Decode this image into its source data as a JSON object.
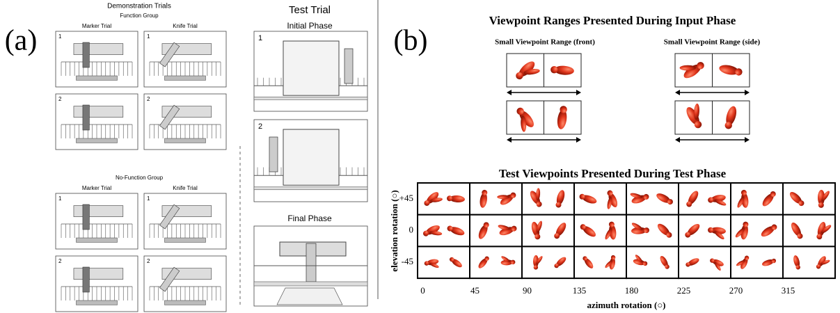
{
  "panel_a": {
    "label": "(a)",
    "demonstration": {
      "title": "Demonstration Trials",
      "groups": [
        {
          "name": "Function Group",
          "columns": [
            "Marker Trial",
            "Knife Trial"
          ],
          "steps": [
            "1",
            "2"
          ]
        },
        {
          "name": "No-Function Group",
          "columns": [
            "Marker Trial",
            "Knife Trial"
          ],
          "steps": [
            "1",
            "2"
          ]
        }
      ]
    },
    "test": {
      "title": "Test Trial",
      "initial": {
        "title": "Initial Phase",
        "steps": [
          "1",
          "2"
        ]
      },
      "final": {
        "title": "Final Phase"
      }
    }
  },
  "panel_b": {
    "label": "(b)",
    "input": {
      "title": "Viewpoint Ranges Presented During Input Phase",
      "ranges": [
        "Small Viewpoint Range (front)",
        "Small Viewpoint Range (side)"
      ]
    },
    "test": {
      "title": "Test Viewpoints Presented During Test Phase",
      "y_label": "elevation rotation (○)",
      "rows": [
        "+45",
        "0",
        "-45"
      ],
      "x_label": "azimuth rotation (○)",
      "columns": [
        "0",
        "45",
        "90",
        "135",
        "180",
        "225",
        "270",
        "315"
      ]
    }
  }
}
